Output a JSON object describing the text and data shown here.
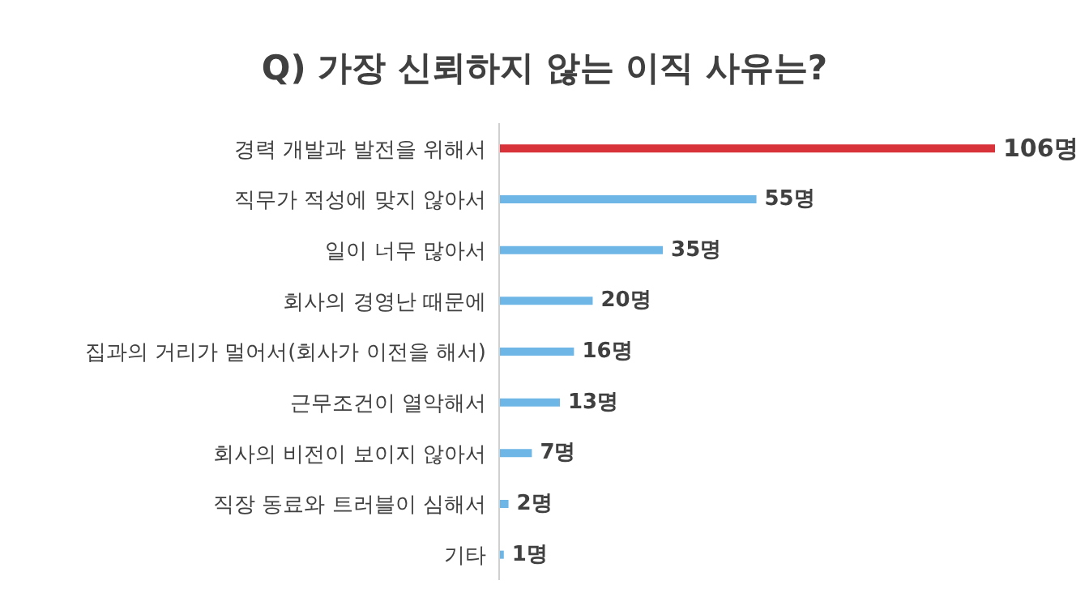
{
  "chart_data": {
    "type": "bar",
    "orientation": "horizontal",
    "title": "Q) 가장 신뢰하지 않는 이직 사유는?",
    "categories": [
      "경력 개발과 발전을 위해서",
      "직무가 적성에 맞지 않아서",
      "일이 너무 많아서",
      "회사의 경영난 때문에",
      "집과의 거리가 멀어서(회사가 이전을 해서)",
      "근무조건이 열악해서",
      "회사의 비전이 보이지 않아서",
      "직장 동료와 트러블이 심해서",
      "기타"
    ],
    "values": [
      106,
      55,
      35,
      20,
      16,
      13,
      7,
      2,
      1
    ],
    "value_labels": [
      "106명",
      "55명",
      "35명",
      "20명",
      "16명",
      "13명",
      "7명",
      "2명",
      "1명"
    ],
    "colors": [
      "#d8323a",
      "#6db6e6",
      "#6db6e6",
      "#6db6e6",
      "#6db6e6",
      "#6db6e6",
      "#6db6e6",
      "#6db6e6",
      "#6db6e6"
    ]
  }
}
